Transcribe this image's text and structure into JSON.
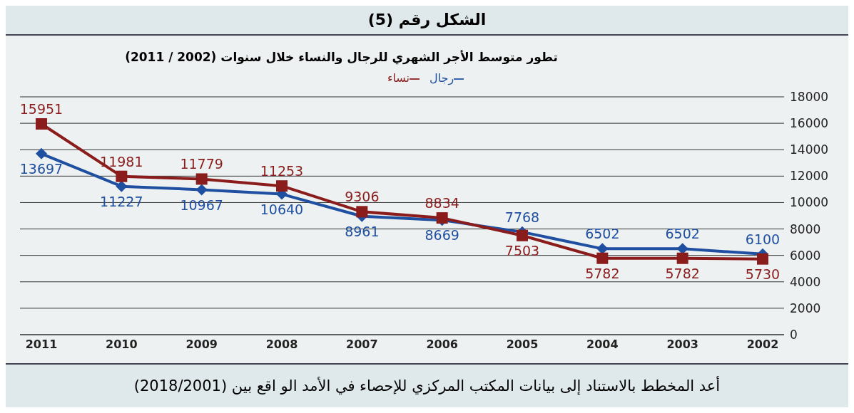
{
  "chart_data": {
    "type": "line",
    "title": "الشكل رقم (5)",
    "subtitle": "تطور متوسط الأجر الشهري للرجال والنساء خلال سنوات (2002 / 2011)",
    "categories": [
      "2011",
      "2010",
      "2009",
      "2008",
      "2007",
      "2006",
      "2005",
      "2004",
      "2003",
      "2002"
    ],
    "series": [
      {
        "name": "رجال",
        "color": "#1f4fa0",
        "marker": "diamond",
        "values": [
          13697,
          11227,
          10967,
          10640,
          8961,
          8669,
          7768,
          6502,
          6502,
          6100
        ]
      },
      {
        "name": "نساء",
        "color": "#8b1c1c",
        "marker": "square",
        "values": [
          15951,
          11981,
          11779,
          11253,
          9306,
          8834,
          7503,
          5782,
          5782,
          5730
        ]
      }
    ],
    "ylim": [
      0,
      18000
    ],
    "yticks": [
      0,
      2000,
      4000,
      6000,
      8000,
      10000,
      12000,
      14000,
      16000,
      18000
    ],
    "grid": "y",
    "legend": "top",
    "data_labels": true,
    "annotations": [
      "أعد المخطط بالاستناد إلى بيانات المكتب المركزي للإحصاء في الأمد الو اقع بين (2018/2001)"
    ]
  }
}
